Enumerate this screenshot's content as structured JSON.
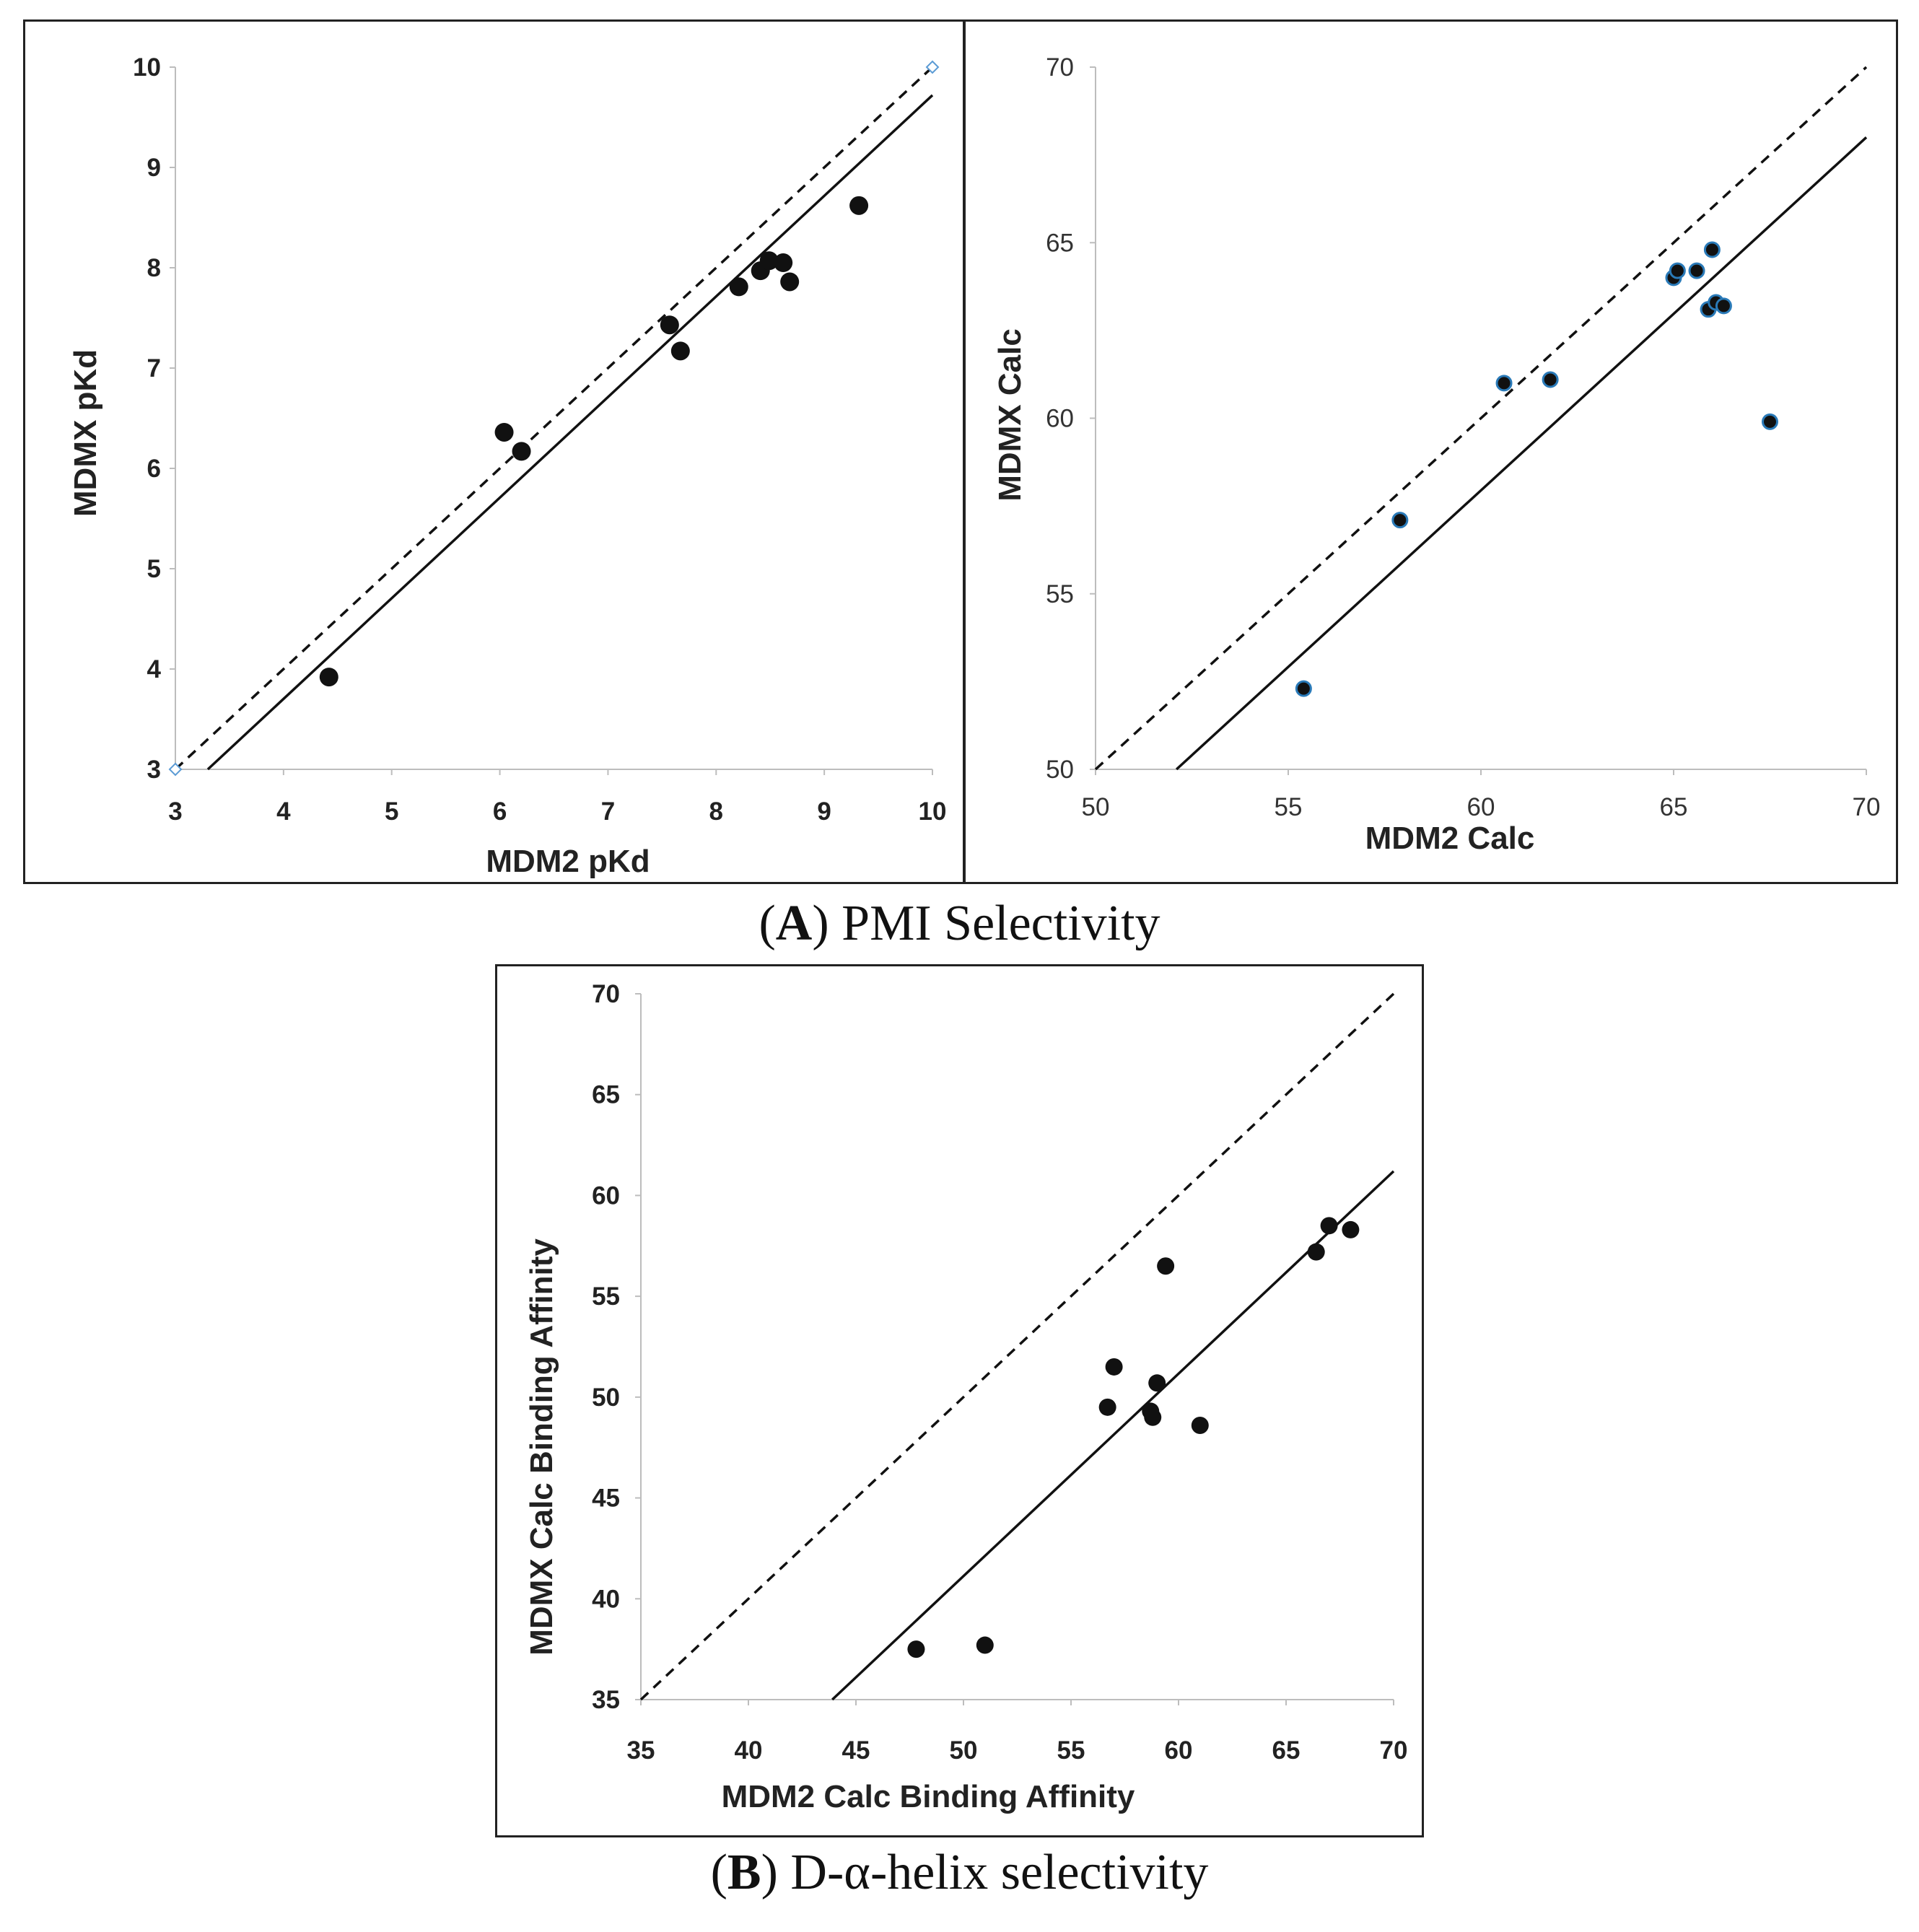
{
  "captions": {
    "a": {
      "letter": "A",
      "text": "PMI Selectivity"
    },
    "b": {
      "letter": "B",
      "text": "D-α-helix selectivity"
    }
  },
  "chart_data": [
    {
      "id": "A-left",
      "type": "scatter",
      "xlabel": "MDM2 pKd",
      "ylabel": "MDMX pKd",
      "xlim": [
        3,
        10
      ],
      "ylim": [
        3,
        10
      ],
      "xticks": [
        "3",
        "4",
        "5",
        "6",
        "7",
        "8",
        "9",
        "10"
      ],
      "yticks": [
        "3",
        "4",
        "5",
        "6",
        "7",
        "8",
        "9",
        "10"
      ],
      "grid": false,
      "points": {
        "x": [
          4.42,
          6.04,
          6.2,
          7.57,
          7.67,
          8.21,
          8.41,
          8.49,
          8.62,
          8.68,
          9.32
        ],
        "y": [
          3.92,
          6.36,
          6.17,
          7.43,
          7.17,
          7.81,
          7.97,
          8.07,
          8.05,
          7.86,
          8.62
        ]
      },
      "reference_markers": {
        "x": [
          3,
          10
        ],
        "y": [
          3,
          10
        ]
      },
      "dashed_line": {
        "x": [
          3,
          10
        ],
        "y": [
          3,
          10
        ]
      },
      "fit_line": {
        "x": [
          3.3,
          10
        ],
        "y": [
          3,
          9.72
        ]
      }
    },
    {
      "id": "A-right",
      "type": "scatter",
      "xlabel": "MDM2 Calc",
      "ylabel": "MDMX Calc",
      "xlim": [
        50,
        70
      ],
      "ylim": [
        50,
        70
      ],
      "xticks": [
        "50",
        "55",
        "60",
        "65",
        "70"
      ],
      "yticks": [
        "50",
        "55",
        "60",
        "65",
        "70"
      ],
      "grid": false,
      "points": {
        "x": [
          55.4,
          57.9,
          60.6,
          61.8,
          65.0,
          65.1,
          65.6,
          66.0,
          65.9,
          66.1,
          66.3,
          67.5
        ],
        "y": [
          52.3,
          57.1,
          61.0,
          61.1,
          64.0,
          64.2,
          64.2,
          64.8,
          63.1,
          63.3,
          63.2,
          59.9
        ]
      },
      "dashed_line": {
        "x": [
          50,
          70
        ],
        "y": [
          50,
          70
        ]
      },
      "fit_line": {
        "x": [
          52.1,
          70
        ],
        "y": [
          50,
          68
        ]
      }
    },
    {
      "id": "B",
      "type": "scatter",
      "xlabel": "MDM2 Calc Binding Affinity",
      "ylabel": "MDMX Calc Binding Affinity",
      "xlim": [
        35,
        70
      ],
      "ylim": [
        35,
        70
      ],
      "xticks": [
        "35",
        "40",
        "45",
        "50",
        "55",
        "60",
        "65",
        "70"
      ],
      "yticks": [
        "35",
        "40",
        "45",
        "50",
        "55",
        "60",
        "65",
        "70"
      ],
      "grid": false,
      "points": {
        "x": [
          47.8,
          51.0,
          56.7,
          57.0,
          58.7,
          58.8,
          59.0,
          59.4,
          61.0,
          66.4,
          67.0,
          68.0
        ],
        "y": [
          37.5,
          37.7,
          49.5,
          51.5,
          49.3,
          49.0,
          50.7,
          56.5,
          48.6,
          57.2,
          58.5,
          58.3
        ]
      },
      "dashed_line": {
        "x": [
          35,
          70
        ],
        "y": [
          35,
          70
        ]
      },
      "fit_line": {
        "x": [
          43.9,
          70
        ],
        "y": [
          35,
          61.2
        ]
      }
    }
  ]
}
